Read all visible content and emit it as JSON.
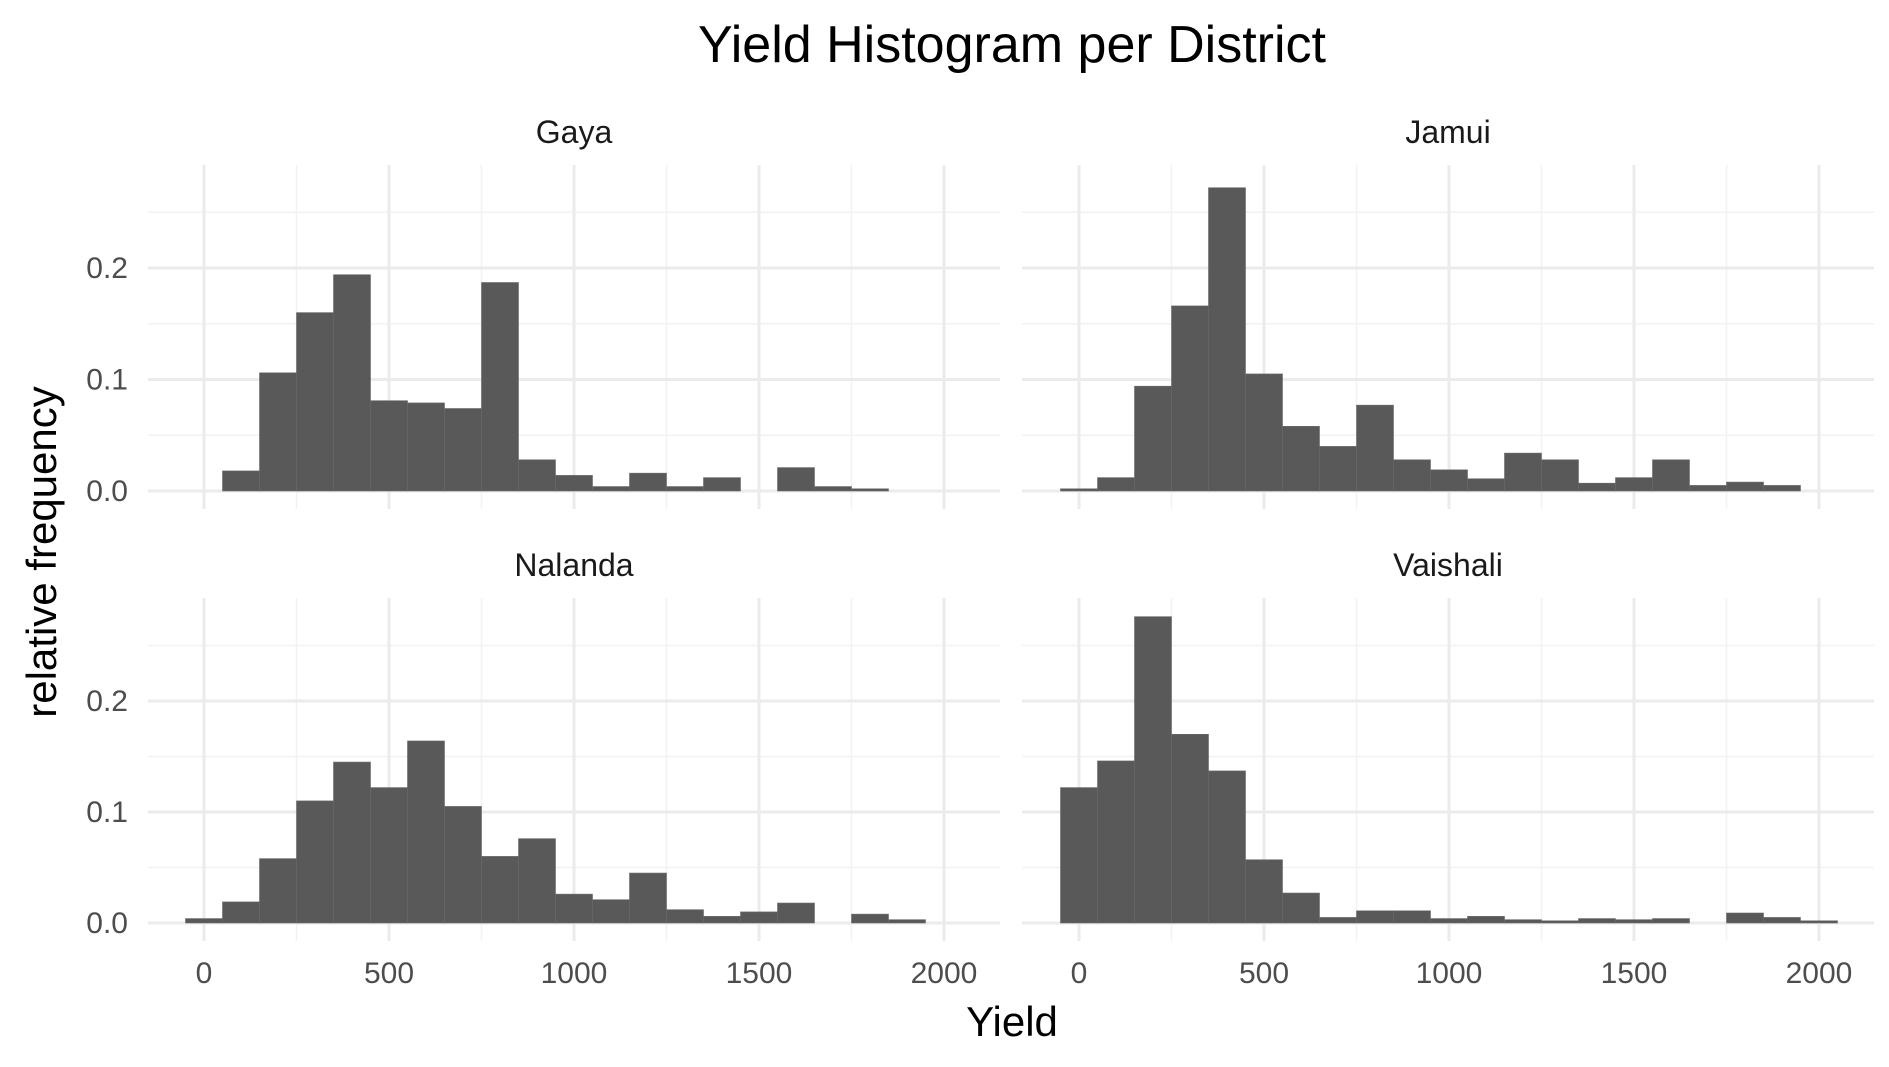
{
  "chart_data": {
    "type": "bar",
    "title": "Yield Histogram per District",
    "xlabel": "Yield",
    "ylabel": "relative frequency",
    "xlim": [
      -100,
      2100
    ],
    "ylim": [
      0,
      0.28
    ],
    "x_ticks": [
      0,
      500,
      1000,
      1500,
      2000
    ],
    "y_ticks": [
      0.0,
      0.1,
      0.2
    ],
    "x_tick_labels": [
      "0",
      "500",
      "1000",
      "1500",
      "2000"
    ],
    "y_tick_labels": [
      "0.0",
      "0.1",
      "0.2"
    ],
    "bin_width": 100,
    "grid": true,
    "facets": [
      {
        "name": "Gaya",
        "bins": [
          {
            "start": 50,
            "value": 0.018
          },
          {
            "start": 150,
            "value": 0.106
          },
          {
            "start": 250,
            "value": 0.16
          },
          {
            "start": 350,
            "value": 0.194
          },
          {
            "start": 450,
            "value": 0.081
          },
          {
            "start": 550,
            "value": 0.079
          },
          {
            "start": 650,
            "value": 0.074
          },
          {
            "start": 750,
            "value": 0.187
          },
          {
            "start": 850,
            "value": 0.028
          },
          {
            "start": 950,
            "value": 0.014
          },
          {
            "start": 1050,
            "value": 0.004
          },
          {
            "start": 1150,
            "value": 0.016
          },
          {
            "start": 1250,
            "value": 0.004
          },
          {
            "start": 1350,
            "value": 0.012
          },
          {
            "start": 1450,
            "value": 0.0
          },
          {
            "start": 1550,
            "value": 0.021
          },
          {
            "start": 1650,
            "value": 0.004
          },
          {
            "start": 1750,
            "value": 0.002
          }
        ]
      },
      {
        "name": "Jamui",
        "bins": [
          {
            "start": -50,
            "value": 0.002
          },
          {
            "start": 50,
            "value": 0.012
          },
          {
            "start": 150,
            "value": 0.094
          },
          {
            "start": 250,
            "value": 0.166
          },
          {
            "start": 350,
            "value": 0.272
          },
          {
            "start": 450,
            "value": 0.105
          },
          {
            "start": 550,
            "value": 0.058
          },
          {
            "start": 650,
            "value": 0.04
          },
          {
            "start": 750,
            "value": 0.077
          },
          {
            "start": 850,
            "value": 0.028
          },
          {
            "start": 950,
            "value": 0.019
          },
          {
            "start": 1050,
            "value": 0.011
          },
          {
            "start": 1150,
            "value": 0.034
          },
          {
            "start": 1250,
            "value": 0.028
          },
          {
            "start": 1350,
            "value": 0.007
          },
          {
            "start": 1450,
            "value": 0.012
          },
          {
            "start": 1550,
            "value": 0.028
          },
          {
            "start": 1650,
            "value": 0.005
          },
          {
            "start": 1750,
            "value": 0.008
          },
          {
            "start": 1850,
            "value": 0.005
          }
        ]
      },
      {
        "name": "Nalanda",
        "bins": [
          {
            "start": -50,
            "value": 0.004
          },
          {
            "start": 50,
            "value": 0.019
          },
          {
            "start": 150,
            "value": 0.058
          },
          {
            "start": 250,
            "value": 0.11
          },
          {
            "start": 350,
            "value": 0.145
          },
          {
            "start": 450,
            "value": 0.122
          },
          {
            "start": 550,
            "value": 0.164
          },
          {
            "start": 650,
            "value": 0.105
          },
          {
            "start": 750,
            "value": 0.06
          },
          {
            "start": 850,
            "value": 0.076
          },
          {
            "start": 950,
            "value": 0.026
          },
          {
            "start": 1050,
            "value": 0.021
          },
          {
            "start": 1150,
            "value": 0.045
          },
          {
            "start": 1250,
            "value": 0.012
          },
          {
            "start": 1350,
            "value": 0.006
          },
          {
            "start": 1450,
            "value": 0.01
          },
          {
            "start": 1550,
            "value": 0.018
          },
          {
            "start": 1650,
            "value": 0.0
          },
          {
            "start": 1750,
            "value": 0.008
          },
          {
            "start": 1850,
            "value": 0.003
          }
        ]
      },
      {
        "name": "Vaishali",
        "bins": [
          {
            "start": -50,
            "value": 0.122
          },
          {
            "start": 50,
            "value": 0.146
          },
          {
            "start": 150,
            "value": 0.276
          },
          {
            "start": 250,
            "value": 0.17
          },
          {
            "start": 350,
            "value": 0.137
          },
          {
            "start": 450,
            "value": 0.057
          },
          {
            "start": 550,
            "value": 0.027
          },
          {
            "start": 650,
            "value": 0.005
          },
          {
            "start": 750,
            "value": 0.011
          },
          {
            "start": 850,
            "value": 0.011
          },
          {
            "start": 950,
            "value": 0.004
          },
          {
            "start": 1050,
            "value": 0.006
          },
          {
            "start": 1150,
            "value": 0.003
          },
          {
            "start": 1250,
            "value": 0.002
          },
          {
            "start": 1350,
            "value": 0.004
          },
          {
            "start": 1450,
            "value": 0.003
          },
          {
            "start": 1550,
            "value": 0.004
          },
          {
            "start": 1650,
            "value": 0.0
          },
          {
            "start": 1750,
            "value": 0.009
          },
          {
            "start": 1850,
            "value": 0.005
          },
          {
            "start": 1950,
            "value": 0.002
          }
        ]
      }
    ]
  }
}
